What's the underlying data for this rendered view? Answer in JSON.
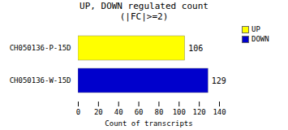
{
  "chart_data": {
    "type": "bar",
    "orientation": "horizontal",
    "title": "UP, DOWN regulated count",
    "subtitle": "(|FC|>=2)",
    "categories": [
      "CH050136-P-15D",
      "CH050136-W-15D"
    ],
    "series": [
      {
        "name": "UP",
        "color": "#FFFF00",
        "values": [
          106,
          null
        ]
      },
      {
        "name": "DOWN",
        "color": "#0000CC",
        "values": [
          null,
          129
        ]
      }
    ],
    "xlabel": "Count of transcripts",
    "xlim": [
      0,
      140
    ],
    "xticks": [
      0,
      20,
      40,
      60,
      80,
      100,
      120,
      140
    ],
    "data_labels": true,
    "legend": "upper right",
    "grid": false
  }
}
